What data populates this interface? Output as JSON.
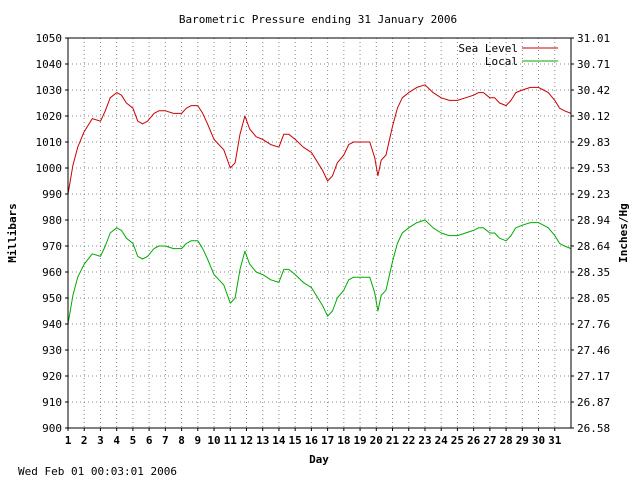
{
  "chart_data": {
    "type": "line",
    "title": "Barometric Pressure ending 31 January 2006",
    "xlabel": "Day",
    "ylabel": "Millibars",
    "ylabel_right": "Inches/Hg",
    "timestamp": "Wed Feb 01 00:03:01 2006",
    "ylim": [
      900,
      1050
    ],
    "xlim": [
      1,
      32
    ],
    "grid": true,
    "legend_position": "top-right",
    "x_ticks": [
      "1",
      "2",
      "3",
      "4",
      "5",
      "6",
      "7",
      "8",
      "9",
      "10",
      "11",
      "12",
      "13",
      "14",
      "15",
      "16",
      "17",
      "18",
      "19",
      "20",
      "21",
      "22",
      "23",
      "24",
      "25",
      "26",
      "27",
      "28",
      "29",
      "30",
      "31"
    ],
    "y_ticks_left": [
      "900",
      "910",
      "920",
      "930",
      "940",
      "950",
      "960",
      "970",
      "980",
      "990",
      "1000",
      "1010",
      "1020",
      "1030",
      "1040",
      "1050"
    ],
    "y_ticks_right": [
      "26.58",
      "26.87",
      "27.17",
      "27.46",
      "27.76",
      "28.05",
      "28.35",
      "28.64",
      "28.94",
      "29.23",
      "29.53",
      "29.83",
      "30.12",
      "30.42",
      "30.71",
      "31.01"
    ],
    "series": [
      {
        "name": "Sea Level",
        "color": "#cc0000",
        "x": [
          1,
          1.3,
          1.6,
          2,
          2.5,
          3,
          3.3,
          3.6,
          4,
          4.3,
          4.6,
          5,
          5.3,
          5.6,
          5.9,
          6.3,
          6.6,
          7,
          7.5,
          8,
          8.3,
          8.6,
          9,
          9.3,
          9.6,
          10,
          10.3,
          10.6,
          11,
          11.3,
          11.6,
          11.9,
          12.2,
          12.6,
          13,
          13.5,
          14,
          14.3,
          14.6,
          15,
          15.5,
          16,
          16.3,
          16.7,
          17,
          17.3,
          17.6,
          18,
          18.3,
          18.6,
          19,
          19.3,
          19.6,
          19.9,
          20.1,
          20.3,
          20.6,
          21,
          21.3,
          21.6,
          22,
          22.5,
          23,
          23.5,
          24,
          24.5,
          25,
          25.5,
          26,
          26.3,
          26.6,
          27,
          27.3,
          27.6,
          28,
          28.3,
          28.6,
          29,
          29.5,
          30,
          30.3,
          30.6,
          31,
          31.3,
          31.6,
          32
        ],
        "y": [
          990,
          1001,
          1008,
          1014,
          1019,
          1018,
          1022,
          1027,
          1029,
          1028,
          1025,
          1023,
          1018,
          1017,
          1018,
          1021,
          1022,
          1022,
          1021,
          1021,
          1023,
          1024,
          1024,
          1021,
          1017,
          1011,
          1009,
          1007,
          1000,
          1002,
          1013,
          1020,
          1015,
          1012,
          1011,
          1009,
          1008,
          1013,
          1013,
          1011,
          1008,
          1006,
          1003,
          999,
          995,
          997,
          1002,
          1005,
          1009,
          1010,
          1010,
          1010,
          1010,
          1004,
          997,
          1003,
          1005,
          1016,
          1023,
          1027,
          1029,
          1031,
          1032,
          1029,
          1027,
          1026,
          1026,
          1027,
          1028,
          1029,
          1029,
          1027,
          1027,
          1025,
          1024,
          1026,
          1029,
          1030,
          1031,
          1031,
          1030,
          1029,
          1026,
          1023,
          1022,
          1021
        ]
      },
      {
        "name": "Local",
        "color": "#00aa00",
        "x": [
          1,
          1.3,
          1.6,
          2,
          2.5,
          3,
          3.3,
          3.6,
          4,
          4.3,
          4.6,
          5,
          5.3,
          5.6,
          5.9,
          6.3,
          6.6,
          7,
          7.5,
          8,
          8.3,
          8.6,
          9,
          9.3,
          9.6,
          10,
          10.3,
          10.6,
          11,
          11.3,
          11.6,
          11.9,
          12.2,
          12.6,
          13,
          13.5,
          14,
          14.3,
          14.6,
          15,
          15.5,
          16,
          16.3,
          16.7,
          17,
          17.3,
          17.6,
          18,
          18.3,
          18.6,
          19,
          19.3,
          19.6,
          19.9,
          20.1,
          20.3,
          20.6,
          21,
          21.3,
          21.6,
          22,
          22.5,
          23,
          23.5,
          24,
          24.5,
          25,
          25.5,
          26,
          26.3,
          26.6,
          27,
          27.3,
          27.6,
          28,
          28.3,
          28.6,
          29,
          29.5,
          30,
          30.3,
          30.6,
          31,
          31.3,
          31.6,
          32
        ],
        "y": [
          940,
          951,
          958,
          963,
          967,
          966,
          970,
          975,
          977,
          976,
          973,
          971,
          966,
          965,
          966,
          969,
          970,
          970,
          969,
          969,
          971,
          972,
          972,
          969,
          965,
          959,
          957,
          955,
          948,
          950,
          961,
          968,
          963,
          960,
          959,
          957,
          956,
          961,
          961,
          959,
          956,
          954,
          951,
          947,
          943,
          945,
          950,
          953,
          957,
          958,
          958,
          958,
          958,
          952,
          945,
          951,
          953,
          964,
          971,
          975,
          977,
          979,
          980,
          977,
          975,
          974,
          974,
          975,
          976,
          977,
          977,
          975,
          975,
          973,
          972,
          974,
          977,
          978,
          979,
          979,
          978,
          977,
          974,
          971,
          970,
          969
        ]
      }
    ]
  }
}
